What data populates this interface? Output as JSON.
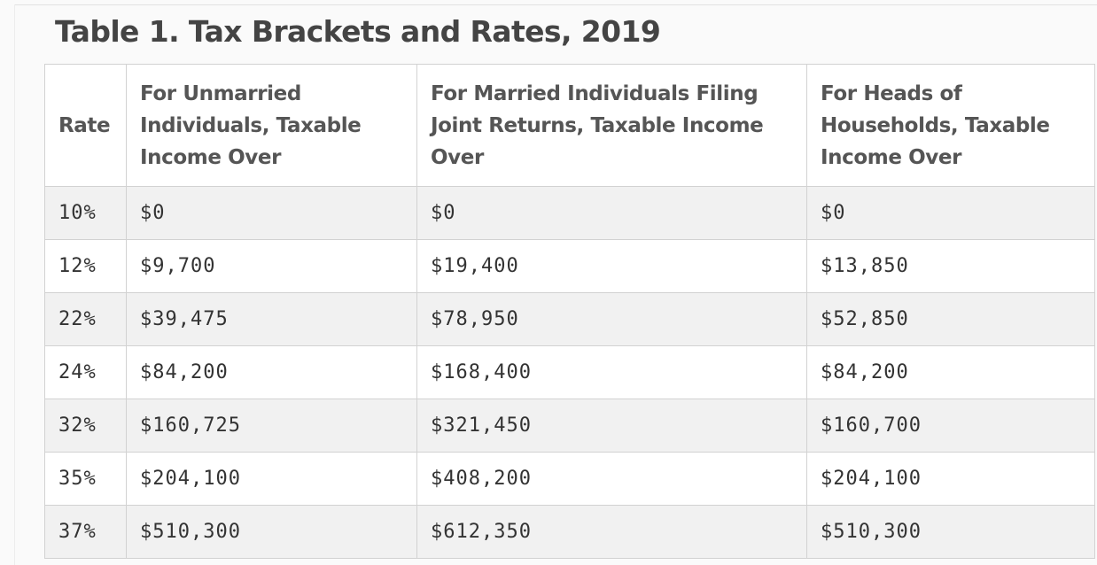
{
  "title": "Table 1. Tax Brackets and Rates, 2019",
  "columns": [
    "Rate",
    "For Unmarried Individuals, Taxable Income Over",
    "For Married Individuals Filing Joint Returns, Taxable Income Over",
    "For Heads of Households, Taxable Income Over"
  ],
  "rows": [
    [
      "10%",
      "$0",
      "$0",
      "$0"
    ],
    [
      "12%",
      "$9,700",
      "$19,400",
      "$13,850"
    ],
    [
      "22%",
      "$39,475",
      "$78,950",
      "$52,850"
    ],
    [
      "24%",
      "$84,200",
      "$168,400",
      "$84,200"
    ],
    [
      "32%",
      "$160,725",
      "$321,450",
      "$160,700"
    ],
    [
      "35%",
      "$204,100",
      "$408,200",
      "$204,100"
    ],
    [
      "37%",
      "$510,300",
      "$612,350",
      "$510,300"
    ]
  ]
}
